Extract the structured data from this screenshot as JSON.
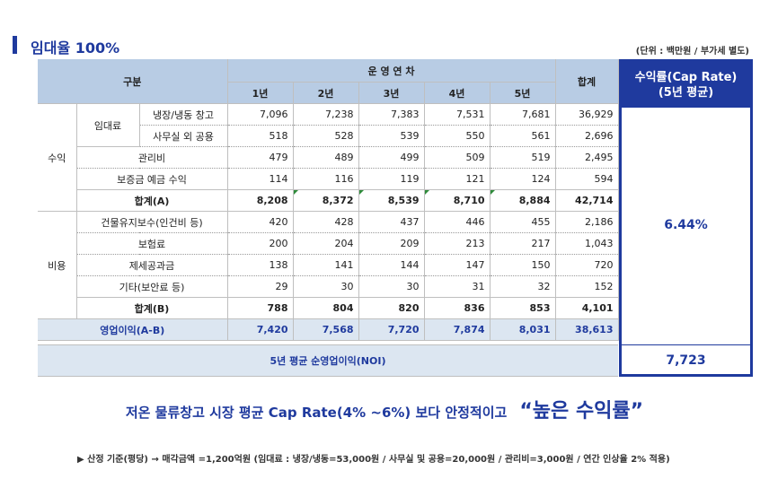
{
  "title": "임대율 100%",
  "unit_note": "(단위 : 백만원 / 부가세 별도)",
  "table": {
    "header_group": "구분",
    "header_years_group": "운 영 연 차",
    "years": [
      "1년",
      "2년",
      "3년",
      "4년",
      "5년"
    ],
    "header_total": "합계",
    "revenue_label": "수익",
    "cost_label": "비용",
    "rent_label": "임대료",
    "rows": [
      {
        "label": "냉장/냉동 창고",
        "values": [
          "7,096",
          "7,238",
          "7,383",
          "7,531",
          "7,681"
        ],
        "total": "36,929"
      },
      {
        "label": "사무실 외 공용",
        "values": [
          "518",
          "528",
          "539",
          "550",
          "561"
        ],
        "total": "2,696"
      },
      {
        "label": "관리비",
        "values": [
          "479",
          "489",
          "499",
          "509",
          "519"
        ],
        "total": "2,495"
      },
      {
        "label": "보증금 예금 수익",
        "values": [
          "114",
          "116",
          "119",
          "121",
          "124"
        ],
        "total": "594"
      },
      {
        "label": "합계(A)",
        "values": [
          "8,208",
          "8,372",
          "8,539",
          "8,710",
          "8,884"
        ],
        "total": "42,714"
      },
      {
        "label": "건물유지보수(인건비 등)",
        "values": [
          "420",
          "428",
          "437",
          "446",
          "455"
        ],
        "total": "2,186"
      },
      {
        "label": "보험료",
        "values": [
          "200",
          "204",
          "209",
          "213",
          "217"
        ],
        "total": "1,043"
      },
      {
        "label": "제세공과금",
        "values": [
          "138",
          "141",
          "144",
          "147",
          "150"
        ],
        "total": "720"
      },
      {
        "label": "기타(보안료 등)",
        "values": [
          "29",
          "30",
          "30",
          "31",
          "32"
        ],
        "total": "152"
      },
      {
        "label": "합계(B)",
        "values": [
          "788",
          "804",
          "820",
          "836",
          "853"
        ],
        "total": "4,101"
      },
      {
        "label": "영업이익(A-B)",
        "values": [
          "7,420",
          "7,568",
          "7,720",
          "7,874",
          "8,031"
        ],
        "total": "38,613"
      }
    ],
    "noi_label": "5년 평균 순영업이익(NOI)"
  },
  "cap": {
    "head_line1": "수익률(Cap Rate)",
    "head_line2": "(5년 평균)",
    "rate": "6.44%",
    "noi": "7,723"
  },
  "headline": {
    "main": "저온 물류창고 시장 평균 Cap Rate(4% ~6%) 보다 안정적이고",
    "emph": "“높은 수익률”"
  },
  "footnote": "▶ 산정 기준(평당) → 매각금액 =1,200억원 (임대료 : 냉장/냉동=53,000원 / 사무실 및 공용=20,000원 / 관리비=3,000원 / 연간 인상율 2% 적용)"
}
